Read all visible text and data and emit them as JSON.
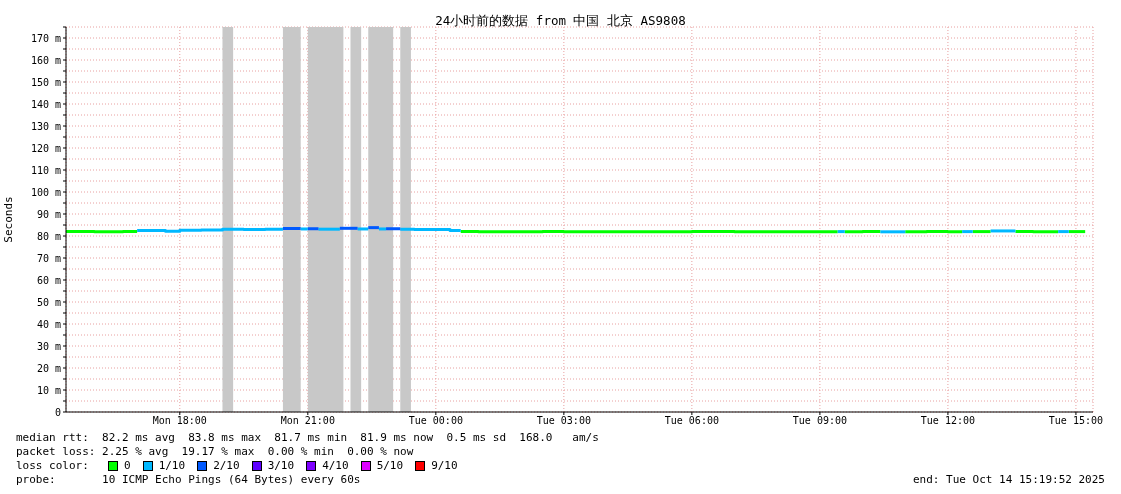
{
  "chart_data": {
    "type": "step",
    "title": "24小时前的数据 from 中国 北京 AS9808",
    "ylabel": "Seconds",
    "legend_title": "loss color:",
    "legend": "bottom",
    "grid": true,
    "marker": "none",
    "line_style": "solid",
    "xlim": [
      "2025-10-13T15:20",
      "2025-10-14T15:24"
    ],
    "xticks": [
      {
        "value": "2025-10-13T18:00",
        "label": "Mon 18:00"
      },
      {
        "value": "2025-10-13T21:00",
        "label": "Mon 21:00"
      },
      {
        "value": "2025-10-14T00:00",
        "label": "Tue 00:00"
      },
      {
        "value": "2025-10-14T03:00",
        "label": "Tue 03:00"
      },
      {
        "value": "2025-10-14T06:00",
        "label": "Tue 06:00"
      },
      {
        "value": "2025-10-14T09:00",
        "label": "Tue 09:00"
      },
      {
        "value": "2025-10-14T12:00",
        "label": "Tue 12:00"
      },
      {
        "value": "2025-10-14T15:00",
        "label": "Tue 15:00"
      }
    ],
    "ylim": [
      0,
      175
    ],
    "yticks": [
      {
        "value": 0,
        "label": "0"
      },
      {
        "value": 5,
        "label": null
      },
      {
        "value": 10,
        "label": "10 m"
      },
      {
        "value": 15,
        "label": null
      },
      {
        "value": 20,
        "label": "20 m"
      },
      {
        "value": 25,
        "label": null
      },
      {
        "value": 30,
        "label": "30 m"
      },
      {
        "value": 35,
        "label": null
      },
      {
        "value": 40,
        "label": "40 m"
      },
      {
        "value": 45,
        "label": null
      },
      {
        "value": 50,
        "label": "50 m"
      },
      {
        "value": 55,
        "label": null
      },
      {
        "value": 60,
        "label": "60 m"
      },
      {
        "value": 65,
        "label": null
      },
      {
        "value": 70,
        "label": "70 m"
      },
      {
        "value": 75,
        "label": null
      },
      {
        "value": 80,
        "label": "80 m"
      },
      {
        "value": 85,
        "label": null
      },
      {
        "value": 90,
        "label": "90 m"
      },
      {
        "value": 95,
        "label": null
      },
      {
        "value": 100,
        "label": "100 m"
      },
      {
        "value": 105,
        "label": null
      },
      {
        "value": 110,
        "label": "110 m"
      },
      {
        "value": 115,
        "label": null
      },
      {
        "value": 120,
        "label": "120 m"
      },
      {
        "value": 125,
        "label": null
      },
      {
        "value": 130,
        "label": "130 m"
      },
      {
        "value": 135,
        "label": null
      },
      {
        "value": 140,
        "label": "140 m"
      },
      {
        "value": 145,
        "label": null
      },
      {
        "value": 150,
        "label": "150 m"
      },
      {
        "value": 155,
        "label": null
      },
      {
        "value": 160,
        "label": "160 m"
      },
      {
        "value": 165,
        "label": null
      },
      {
        "value": 170,
        "label": "170 m"
      },
      {
        "value": 175,
        "label": null
      }
    ],
    "bands": [
      {
        "axis": "x",
        "from": "2025-10-13T19:00",
        "to": "2025-10-13T19:15",
        "color": "#c8c8c8"
      },
      {
        "axis": "x",
        "from": "2025-10-13T20:25",
        "to": "2025-10-13T20:50",
        "color": "#c8c8c8"
      },
      {
        "axis": "x",
        "from": "2025-10-13T21:00",
        "to": "2025-10-13T21:50",
        "color": "#c8c8c8"
      },
      {
        "axis": "x",
        "from": "2025-10-13T22:00",
        "to": "2025-10-13T22:15",
        "color": "#c8c8c8"
      },
      {
        "axis": "x",
        "from": "2025-10-13T22:25",
        "to": "2025-10-13T23:00",
        "color": "#c8c8c8"
      },
      {
        "axis": "x",
        "from": "2025-10-13T23:10",
        "to": "2025-10-13T23:25",
        "color": "#c8c8c8"
      }
    ],
    "series": [
      {
        "name": "0",
        "color": "#00ff00",
        "x": [
          "2025-10-13T15:20",
          "2025-10-13T16:00",
          "2025-10-13T16:40",
          "2025-10-13T17:00"
        ],
        "values": [
          82.0,
          81.9,
          82.0,
          82.0
        ]
      },
      {
        "name": "1/10",
        "color": "#00b8ff",
        "x": [
          "2025-10-13T17:00",
          "2025-10-13T17:40",
          "2025-10-13T18:00",
          "2025-10-13T18:30",
          "2025-10-13T19:00",
          "2025-10-13T19:30",
          "2025-10-13T20:00",
          "2025-10-13T20:25"
        ],
        "values": [
          82.5,
          82.2,
          82.6,
          82.7,
          83.1,
          83.0,
          83.1,
          83.1
        ]
      },
      {
        "name": "2/10",
        "color": "#0059ff",
        "x": [
          "2025-10-13T20:25",
          "2025-10-13T20:50"
        ],
        "values": [
          83.4,
          83.4
        ]
      },
      {
        "name": "3/10",
        "color": "#5e00ff"
      },
      {
        "name": "4/10",
        "color": "#7e00ff"
      },
      {
        "name": "5/10",
        "color": "#dd00ff"
      },
      {
        "name": "9/10",
        "color": "#ff0000"
      },
      {
        "color": "#00ff00",
        "x": [
          "2025-10-14T00:35",
          "2025-10-14T01:00",
          "2025-10-14T02:00",
          "2025-10-14T02:30",
          "2025-10-14T03:00",
          "2025-10-14T04:00",
          "2025-10-14T05:00",
          "2025-10-14T06:00",
          "2025-10-14T07:00",
          "2025-10-14T08:00",
          "2025-10-14T09:00",
          "2025-10-14T09:25"
        ],
        "values": [
          82.0,
          81.9,
          81.9,
          82.0,
          81.9,
          81.9,
          81.9,
          82.0,
          81.9,
          81.9,
          81.9,
          81.9
        ]
      },
      {
        "color": "#00ff00",
        "x": [
          "2025-10-14T09:35",
          "2025-10-14T10:00",
          "2025-10-14T10:25"
        ],
        "values": [
          81.9,
          82.0,
          82.0
        ]
      },
      {
        "color": "#00ff00",
        "x": [
          "2025-10-14T11:00",
          "2025-10-14T11:30",
          "2025-10-14T12:00",
          "2025-10-14T12:20"
        ],
        "values": [
          81.9,
          82.0,
          81.9,
          81.9
        ]
      },
      {
        "color": "#00ff00",
        "x": [
          "2025-10-14T12:35",
          "2025-10-14T13:00"
        ],
        "values": [
          82.0,
          82.0
        ]
      },
      {
        "color": "#00ff00",
        "x": [
          "2025-10-14T13:35",
          "2025-10-14T14:00",
          "2025-10-14T14:35"
        ],
        "values": [
          82.0,
          81.9,
          81.9
        ]
      },
      {
        "color": "#00ff00",
        "x": [
          "2025-10-14T14:50",
          "2025-10-14T15:13"
        ],
        "values": [
          82.0,
          82.0
        ]
      },
      {
        "color": "#00b8ff",
        "x": [
          "2025-10-13T20:50",
          "2025-10-13T21:00"
        ],
        "values": [
          83.2,
          83.2
        ]
      },
      {
        "color": "#00b8ff",
        "x": [
          "2025-10-13T21:15",
          "2025-10-13T21:45"
        ],
        "values": [
          83.1,
          83.1
        ]
      },
      {
        "color": "#00b8ff",
        "x": [
          "2025-10-13T22:10",
          "2025-10-13T22:25"
        ],
        "values": [
          83.2,
          83.2
        ]
      },
      {
        "color": "#00b8ff",
        "x": [
          "2025-10-13T22:40",
          "2025-10-13T22:50"
        ],
        "values": [
          83.2,
          83.2
        ]
      },
      {
        "color": "#00b8ff",
        "x": [
          "2025-10-13T23:10",
          "2025-10-13T23:30",
          "2025-10-14T00:00",
          "2025-10-14T00:20",
          "2025-10-14T00:35"
        ],
        "values": [
          83.1,
          83.0,
          83.0,
          82.5,
          82.5
        ]
      },
      {
        "color": "#00b8ff",
        "x": [
          "2025-10-14T09:25",
          "2025-10-14T09:35"
        ],
        "values": [
          82.0,
          82.0
        ]
      },
      {
        "color": "#00b8ff",
        "x": [
          "2025-10-14T10:25",
          "2025-10-14T11:00"
        ],
        "values": [
          81.9,
          81.9
        ]
      },
      {
        "color": "#00b8ff",
        "x": [
          "2025-10-14T12:20",
          "2025-10-14T12:35"
        ],
        "values": [
          82.0,
          82.0
        ]
      },
      {
        "color": "#00b8ff",
        "x": [
          "2025-10-14T13:00",
          "2025-10-14T13:35"
        ],
        "values": [
          82.3,
          82.3
        ]
      },
      {
        "color": "#00b8ff",
        "x": [
          "2025-10-14T14:35",
          "2025-10-14T14:50"
        ],
        "values": [
          82.0,
          82.0
        ]
      },
      {
        "color": "#0059ff",
        "x": [
          "2025-10-13T21:00",
          "2025-10-13T21:15"
        ],
        "values": [
          83.3,
          83.3
        ]
      },
      {
        "color": "#0059ff",
        "x": [
          "2025-10-13T21:45",
          "2025-10-13T22:10"
        ],
        "values": [
          83.5,
          83.5
        ]
      },
      {
        "color": "#0059ff",
        "x": [
          "2025-10-13T22:25",
          "2025-10-13T22:40"
        ],
        "values": [
          83.8,
          83.8
        ]
      },
      {
        "color": "#0059ff",
        "x": [
          "2025-10-13T22:50",
          "2025-10-13T23:10"
        ],
        "values": [
          83.3,
          83.3
        ]
      }
    ],
    "annotations": [
      "median rtt:  82.2 ms avg  83.8 ms max  81.7 ms min  81.9 ms now  0.5 ms sd  168.0   am/s",
      "packet loss: 2.25 % avg  19.17 % max  0.00 % min  0.00 % now",
      "probe:       10 ICMP Echo Pings (64 Bytes) every 60s",
      "end: Tue Oct 14 15:19:52 2025"
    ]
  }
}
